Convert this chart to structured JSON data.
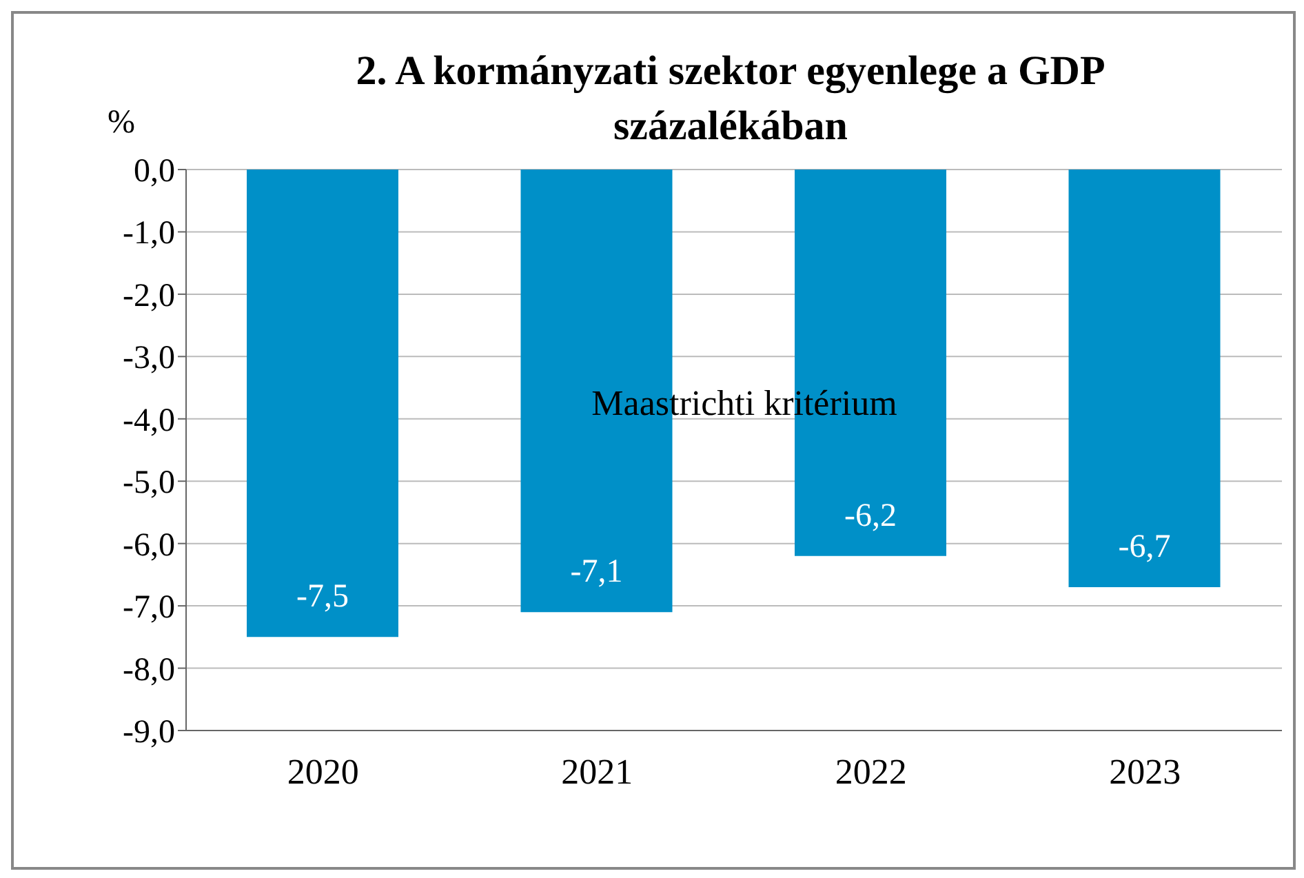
{
  "chart_data": {
    "type": "bar",
    "title": "2. A kormányzati szektor egyenlege a GDP százalékában",
    "ylabel": "%",
    "categories": [
      "2020",
      "2021",
      "2022",
      "2023"
    ],
    "values": [
      -7.5,
      -7.1,
      -6.2,
      -6.7
    ],
    "value_labels": [
      "-7,5",
      "-7,1",
      "-6,2",
      "-6,7"
    ],
    "color": "#0090c8",
    "ylim": [
      -9,
      0
    ],
    "yticks": [
      {
        "value": 0,
        "label": "0,0"
      },
      {
        "value": -1,
        "label": "-1,0"
      },
      {
        "value": -2,
        "label": "-2,0"
      },
      {
        "value": -3,
        "label": "-3,0"
      },
      {
        "value": -4,
        "label": "-4,0"
      },
      {
        "value": -5,
        "label": "-5,0"
      },
      {
        "value": -6,
        "label": "-6,0"
      },
      {
        "value": -7,
        "label": "-7,0"
      },
      {
        "value": -8,
        "label": "-8,0"
      },
      {
        "value": -9,
        "label": "-9,0"
      }
    ],
    "grid": "y",
    "annotations": [
      "Maastrichti kritérium"
    ]
  }
}
